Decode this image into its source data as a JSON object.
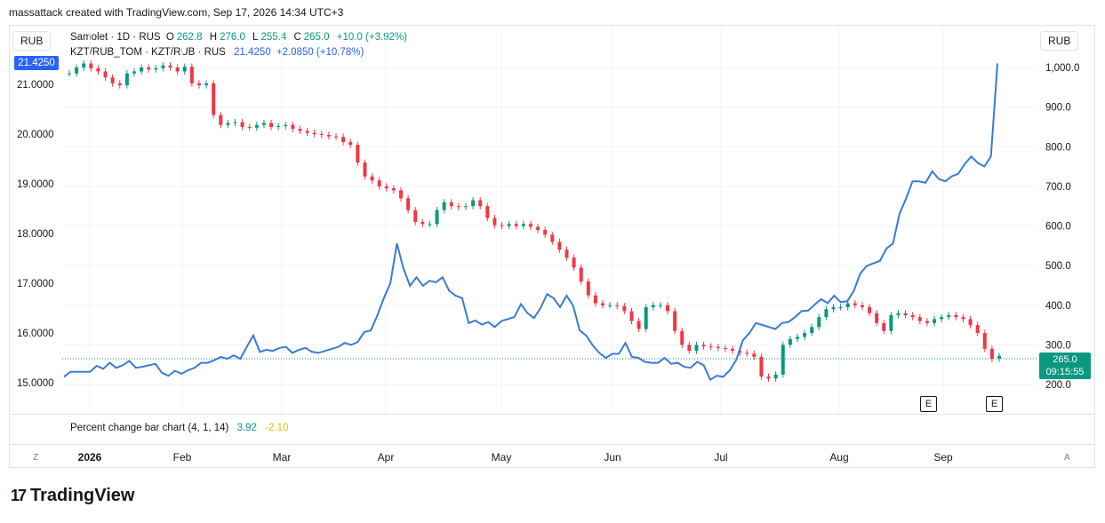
{
  "header": {
    "text": "massattack created with TradingView.com, Sep 17, 2026 14:34 UTC+3"
  },
  "currency_left": "RUB",
  "currency_right": "RUB",
  "legend": {
    "main": {
      "symbol": "Samolet · 1D · RUS",
      "o_label": "O",
      "o_value": "262.8",
      "h_label": "H",
      "h_value": "276.0",
      "l_label": "L",
      "l_value": "255.4",
      "c_label": "C",
      "c_value": "265.0",
      "change": "+10.0 (+3.92%)"
    },
    "compare": {
      "symbol": "KZT/RUB_TOM · KZT/RUB · RUS",
      "value": "21.4250",
      "change": "+2.0850 (+10.78%)"
    },
    "indicator": {
      "name": "Percent change bar chart (4, 1, 14)",
      "v1": "3.92",
      "v2": "-2.10"
    }
  },
  "price_labels": {
    "left_current": "21.4250",
    "right_price": "265.0",
    "right_timer": "09:15:55"
  },
  "earnings_markers": [
    "E",
    "E"
  ],
  "axis_buttons": {
    "left": "Z",
    "right": "A"
  },
  "logo_text": "TradingView",
  "colors": {
    "up": "#089981",
    "down": "#f23645",
    "line": "#3a7bd5",
    "price_line": "#089981"
  },
  "chart_data": {
    "type": "line",
    "left_axis": {
      "ticks": [
        "21.0000",
        "20.0000",
        "19.0000",
        "18.0000",
        "17.0000",
        "16.0000",
        "15.0000"
      ],
      "range": [
        14.95,
        21.45
      ]
    },
    "right_axis": {
      "ticks": [
        "1,000.0",
        "900.0",
        "800.0",
        "700.0",
        "600.0",
        "500.0",
        "400.0",
        "300.0",
        "200.0"
      ],
      "range": [
        196,
        1030
      ]
    },
    "x_ticks": [
      "2026",
      "Feb",
      "Mar",
      "Apr",
      "May",
      "Jun",
      "Jul",
      "Aug",
      "Sep"
    ],
    "kzt_line": [
      15.12,
      15.22,
      15.22,
      15.22,
      15.22,
      15.34,
      15.28,
      15.4,
      15.3,
      15.35,
      15.44,
      15.3,
      15.32,
      15.35,
      15.38,
      15.2,
      15.14,
      15.24,
      15.18,
      15.25,
      15.3,
      15.4,
      15.4,
      15.45,
      15.52,
      15.48,
      15.55,
      15.48,
      15.72,
      15.95,
      15.62,
      15.66,
      15.64,
      15.7,
      15.72,
      15.6,
      15.66,
      15.7,
      15.62,
      15.6,
      15.64,
      15.68,
      15.72,
      15.8,
      15.76,
      15.82,
      16.02,
      16.05,
      16.35,
      16.7,
      17.0,
      17.8,
      17.3,
      16.95,
      17.12,
      16.95,
      17.05,
      17.02,
      17.12,
      16.85,
      16.75,
      16.7,
      16.2,
      16.25,
      16.17,
      16.22,
      16.12,
      16.24,
      16.28,
      16.32,
      16.58,
      16.4,
      16.3,
      16.5,
      16.78,
      16.7,
      16.52,
      16.75,
      16.55,
      16.05,
      15.95,
      15.75,
      15.6,
      15.5,
      15.58,
      15.58,
      15.8,
      15.52,
      15.5,
      15.42,
      15.4,
      15.4,
      15.5,
      15.38,
      15.4,
      15.32,
      15.3,
      15.42,
      15.35,
      15.06,
      15.14,
      15.12,
      15.25,
      15.46,
      15.85,
      16.0,
      16.2,
      16.16,
      16.12,
      16.08,
      16.2,
      16.22,
      16.32,
      16.44,
      16.45,
      16.57,
      16.68,
      16.6,
      16.75,
      16.62,
      16.64,
      16.85,
      17.2,
      17.35,
      17.4,
      17.45,
      17.7,
      17.8,
      18.4,
      18.7,
      19.05,
      19.05,
      19.02,
      19.25,
      19.1,
      19.05,
      19.15,
      19.2,
      19.4,
      19.55,
      19.42,
      19.35,
      19.55,
      21.42
    ],
    "samolet_ohlc": []
  }
}
